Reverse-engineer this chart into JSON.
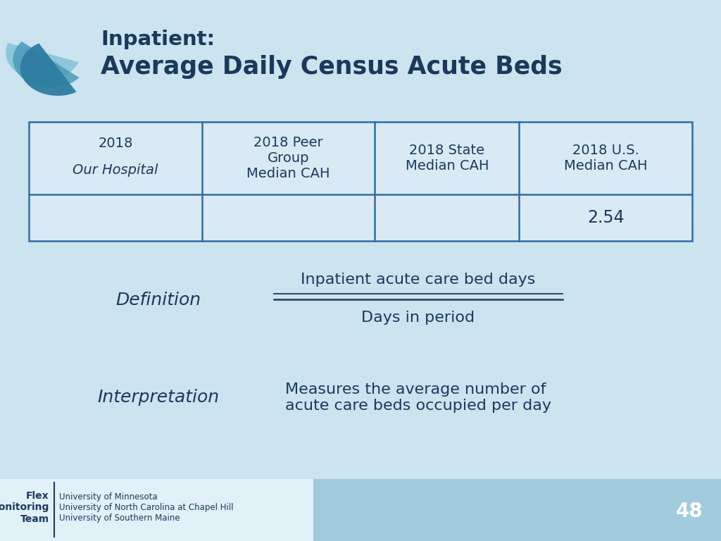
{
  "title_line1": "Inpatient:",
  "title_line2": "Average Daily Census Acute Beds",
  "bg_color": "#cce4f0",
  "title_color": "#1a3a5c",
  "table_header_row": [
    "2018\nOur Hospital",
    "2018 Peer\nGroup\nMedian CAH",
    "2018 State\nMedian CAH",
    "2018 U.S.\nMedian CAH"
  ],
  "table_data_row": [
    "",
    "",
    "",
    "2.54"
  ],
  "table_border_color": "#2e6da4",
  "definition_label": "Definition",
  "definition_text_line1": "Inpatient acute care bed days",
  "definition_text_line2": "Days in period",
  "interpretation_label": "Interpretation",
  "interpretation_text": "Measures the average number of\nacute care beds occupied per day",
  "footer_bold": "Flex\nMonitoring\nTeam",
  "footer_universities": "University of Minnesota\nUniversity of North Carolina at Chapel Hill\nUniversity of Southern Maine",
  "page_number": "48",
  "accent_color": "#2e6da4"
}
